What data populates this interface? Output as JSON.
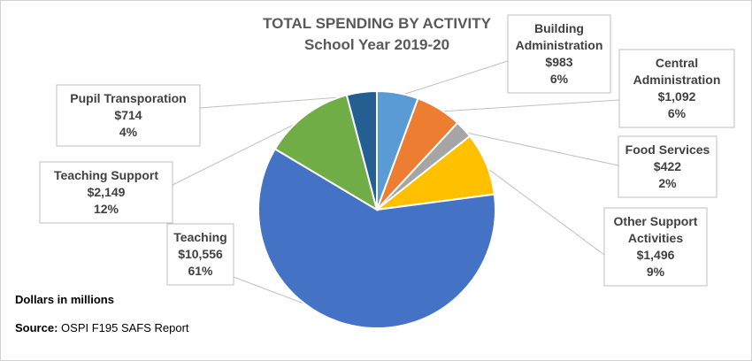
{
  "chart_data": {
    "type": "pie",
    "title": "TOTAL SPENDING BY ACTIVITY",
    "subtitle": "School Year 2019-20",
    "slices": [
      {
        "key": "building-administration",
        "label": "Building Administration",
        "value": 983,
        "value_text": "$983",
        "percent_text": "6%",
        "color": "#5b9bd5"
      },
      {
        "key": "central-administration",
        "label": "Central Administration",
        "value": 1092,
        "value_text": "$1,092",
        "percent_text": "6%",
        "color": "#ed7d31"
      },
      {
        "key": "food-services",
        "label": "Food Services",
        "value": 422,
        "value_text": "$422",
        "percent_text": "2%",
        "color": "#a5a5a5"
      },
      {
        "key": "other-support-activities",
        "label": "Other Support Activities",
        "value": 1496,
        "value_text": "$1,496",
        "percent_text": "9%",
        "color": "#ffc000"
      },
      {
        "key": "teaching",
        "label": "Teaching",
        "value": 10556,
        "value_text": "$10,556",
        "percent_text": "61%",
        "color": "#4472c4"
      },
      {
        "key": "teaching-support",
        "label": "Teaching Support",
        "value": 2149,
        "value_text": "$2,149",
        "percent_text": "12%",
        "color": "#70ad47"
      },
      {
        "key": "pupil-transportation",
        "label": "Pupil Transporation",
        "value": 714,
        "value_text": "$714",
        "percent_text": "4%",
        "color": "#255e91"
      }
    ],
    "label_placement": "outside-callouts"
  },
  "notes": {
    "units": "Dollars in millions",
    "source_label": "Source:",
    "source_text": "OSPI F195 SAFS Report"
  }
}
